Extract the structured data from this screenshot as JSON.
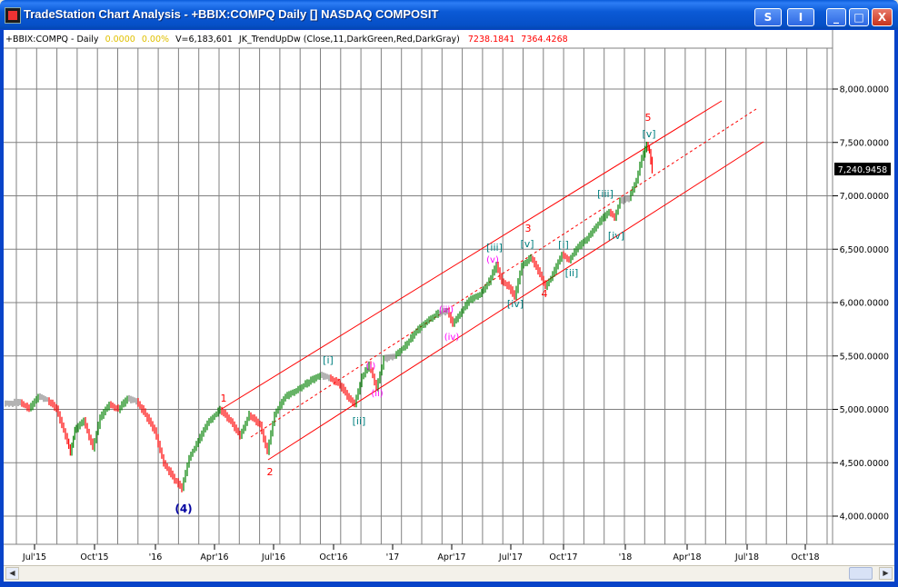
{
  "window": {
    "title": "TradeStation Chart Analysis - +BBIX:COMPQ Daily [] NASDAQ COMPOSIT",
    "buttons": {
      "s": "S",
      "i": "I",
      "min": "_",
      "max": "□",
      "close": "X"
    }
  },
  "chart": {
    "header": {
      "symbol": "+BBIX:COMPQ - Daily",
      "change": "0.0000",
      "change_pct": "0.00%",
      "volume": "V=6,183,601",
      "indicator": "JK_TrendUpDw (Close,11,DarkGreen,Red,DarkGray)",
      "val1": "7238.1841",
      "val2": "7364.4268"
    },
    "price_axis": [
      "8,000.0000",
      "7,500.0000",
      "7,000.0000",
      "6,500.0000",
      "6,000.0000",
      "5,500.0000",
      "5,000.0000",
      "4,500.0000",
      "4,000.0000"
    ],
    "last_price": "7,240.9458",
    "time_axis": [
      "Jul'15",
      "Oct'15",
      "'16",
      "Apr'16",
      "Jul'16",
      "Oct'16",
      "'17",
      "Apr'17",
      "Jul'17",
      "Oct'17",
      "'18",
      "Apr'18",
      "Jul'18",
      "Oct'18"
    ],
    "wave_labels": {
      "w4p": "(4)",
      "w1": "1",
      "w2": "2",
      "w3": "3",
      "w4": "4",
      "w5": "5",
      "ci": "[i]",
      "cii": "[ii]",
      "ciii": "[iii]",
      "civ": "[iv]",
      "cv": "[v]",
      "ci2": "[i]",
      "cii2": "[ii]",
      "ciii2": "[iii]",
      "civ2": "[iv]",
      "cv2": "[v]",
      "mi": "(i)",
      "mii": "(ii)",
      "miii": "(iii)",
      "miv": "(iv)",
      "mv": "(v)"
    },
    "colors": {
      "up": "#008000",
      "down": "#ff0000",
      "neutral": "#808080",
      "channel": "#ff0000",
      "wave_red": "#ff0000",
      "wave_teal": "#008080",
      "wave_magenta": "#ff00ff",
      "wave_navy": "#0000a0",
      "grid": "#808080"
    }
  }
}
